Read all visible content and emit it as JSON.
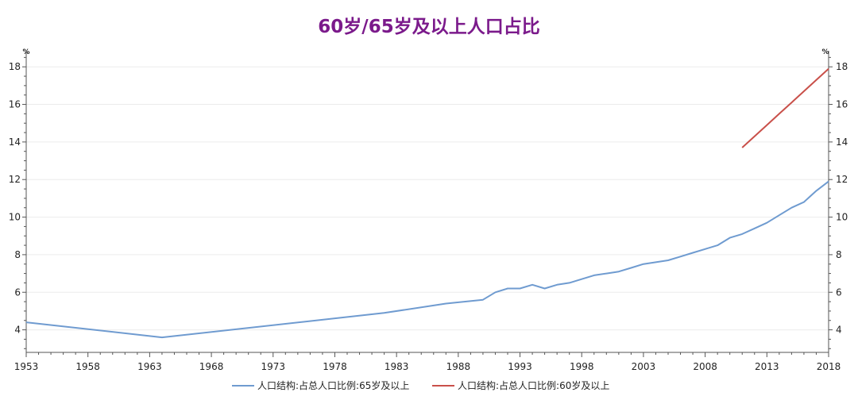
{
  "chart_data": {
    "type": "line",
    "title": "60岁/65岁及以上人口占比",
    "unit_left": "%",
    "unit_right": "%",
    "xlim": [
      1953,
      2018
    ],
    "ylim": [
      2.8,
      18.6
    ],
    "x_ticks": [
      "1953",
      "1958",
      "1963",
      "1968",
      "1973",
      "1978",
      "1983",
      "1988",
      "1993",
      "1998",
      "2003",
      "2008",
      "2013",
      "2018"
    ],
    "y_ticks": [
      4,
      6,
      8,
      10,
      12,
      14,
      16,
      18
    ],
    "grid": true,
    "legend_position": "bottom",
    "series": [
      {
        "name": "人口结构:占总人口比例:65岁及以上",
        "color": "#6f9bd0",
        "axis": "left",
        "x": [
          1953,
          1964,
          1982,
          1987,
          1990,
          1991,
          1992,
          1993,
          1994,
          1995,
          1996,
          1997,
          1998,
          1999,
          2000,
          2001,
          2002,
          2003,
          2004,
          2005,
          2006,
          2007,
          2008,
          2009,
          2010,
          2011,
          2012,
          2013,
          2014,
          2015,
          2016,
          2017,
          2018
        ],
        "y": [
          4.4,
          3.6,
          4.9,
          5.4,
          5.6,
          6.0,
          6.2,
          6.2,
          6.4,
          6.2,
          6.4,
          6.5,
          6.7,
          6.9,
          7.0,
          7.1,
          7.3,
          7.5,
          7.6,
          7.7,
          7.9,
          8.1,
          8.3,
          8.5,
          8.9,
          9.1,
          9.4,
          9.7,
          10.1,
          10.5,
          10.8,
          11.4,
          11.9
        ]
      },
      {
        "name": "人口结构:占总人口比例:60岁及以上",
        "color": "#c9504a",
        "axis": "right",
        "x": [
          2011,
          2012,
          2013,
          2014,
          2015,
          2016,
          2017,
          2018
        ],
        "y": [
          13.7,
          14.3,
          14.9,
          15.5,
          16.1,
          16.7,
          17.3,
          17.9
        ]
      }
    ]
  }
}
